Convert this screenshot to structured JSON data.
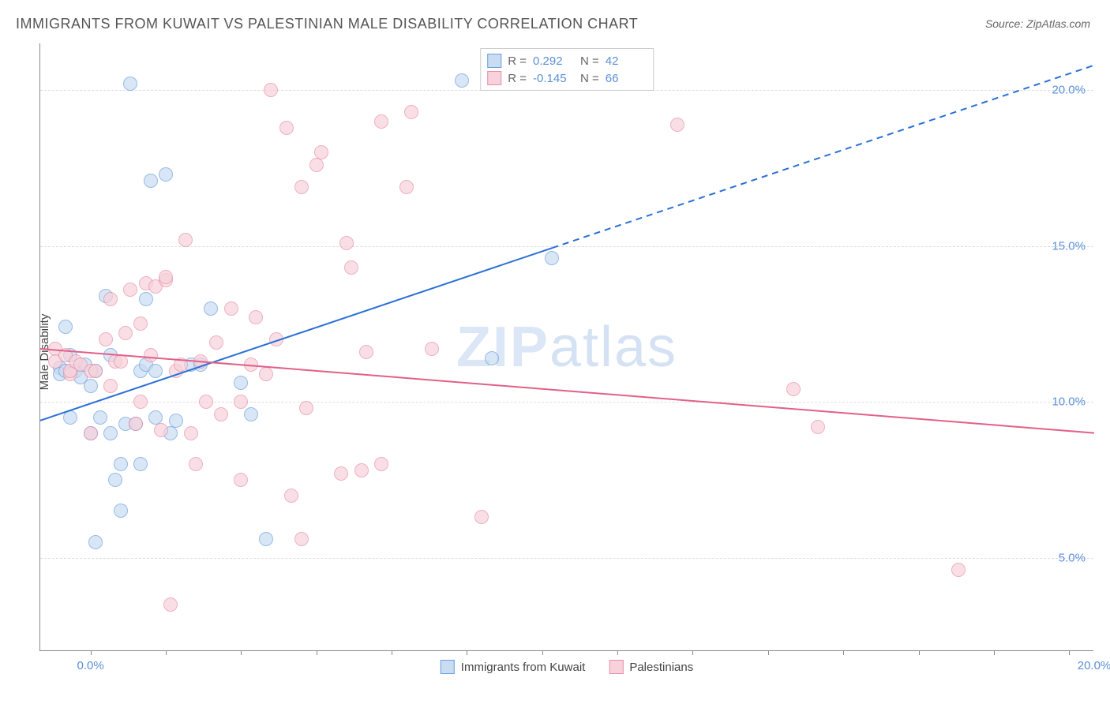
{
  "title": "IMMIGRANTS FROM KUWAIT VS PALESTINIAN MALE DISABILITY CORRELATION CHART",
  "source": "Source: ZipAtlas.com",
  "ylabel": "Male Disability",
  "watermark_a": "ZIP",
  "watermark_b": "atlas",
  "chart": {
    "type": "scatter",
    "background_color": "#ffffff",
    "grid_color": "#dddddd",
    "axis_color": "#888888",
    "xlim": [
      -1,
      20
    ],
    "ylim": [
      2,
      21.5
    ],
    "xtick_marks": [
      0,
      1.5,
      3,
      4.5,
      6,
      7.5,
      9,
      10.5,
      12,
      13.5,
      15,
      16.5,
      18,
      19.5
    ],
    "xtick_labels": [
      {
        "x": 0,
        "label": "0.0%"
      },
      {
        "x": 20,
        "label": "20.0%"
      }
    ],
    "ytick_labels": [
      {
        "y": 5,
        "label": "5.0%"
      },
      {
        "y": 10,
        "label": "10.0%"
      },
      {
        "y": 15,
        "label": "15.0%"
      },
      {
        "y": 20,
        "label": "20.0%"
      }
    ],
    "grid_y": [
      5,
      10,
      15,
      20
    ],
    "marker_radius": 9,
    "series": [
      {
        "name": "Immigrants from Kuwait",
        "fill": "#c9dcf2",
        "stroke": "#6a9fe0",
        "R": "0.292",
        "N": "42",
        "trend": {
          "x1": -1,
          "y1": 9.4,
          "x2": 20,
          "y2": 20.8,
          "solid_until_x": 9.2,
          "color": "#2a6fd6",
          "width": 2
        },
        "points": [
          [
            -0.6,
            11.1
          ],
          [
            -0.6,
            10.9
          ],
          [
            -0.5,
            11.0
          ],
          [
            -0.5,
            12.4
          ],
          [
            -0.4,
            11.5
          ],
          [
            -0.4,
            9.5
          ],
          [
            -0.3,
            11.0
          ],
          [
            -0.2,
            10.8
          ],
          [
            -0.1,
            11.2
          ],
          [
            0.0,
            10.5
          ],
          [
            0.0,
            9.0
          ],
          [
            0.1,
            11.0
          ],
          [
            0.1,
            5.5
          ],
          [
            0.2,
            9.5
          ],
          [
            0.3,
            13.4
          ],
          [
            0.4,
            9.0
          ],
          [
            0.4,
            11.5
          ],
          [
            0.5,
            7.5
          ],
          [
            0.6,
            6.5
          ],
          [
            0.6,
            8.0
          ],
          [
            0.7,
            9.3
          ],
          [
            0.8,
            20.2
          ],
          [
            0.9,
            9.3
          ],
          [
            1.0,
            11.0
          ],
          [
            1.0,
            8.0
          ],
          [
            1.1,
            11.2
          ],
          [
            1.1,
            13.3
          ],
          [
            1.2,
            17.1
          ],
          [
            1.3,
            11.0
          ],
          [
            1.3,
            9.5
          ],
          [
            1.5,
            17.3
          ],
          [
            1.6,
            9.0
          ],
          [
            1.7,
            9.4
          ],
          [
            2.0,
            11.2
          ],
          [
            2.2,
            11.2
          ],
          [
            2.4,
            13.0
          ],
          [
            3.0,
            10.6
          ],
          [
            3.2,
            9.6
          ],
          [
            3.5,
            5.6
          ],
          [
            7.4,
            20.3
          ],
          [
            8.0,
            11.4
          ],
          [
            9.2,
            14.6
          ]
        ]
      },
      {
        "name": "Palestinians",
        "fill": "#f7d2db",
        "stroke": "#e890a8",
        "R": "-0.145",
        "N": "66",
        "trend": {
          "x1": -1,
          "y1": 11.7,
          "x2": 20,
          "y2": 9.0,
          "solid_until_x": 20,
          "color": "#e26088",
          "width": 2
        },
        "points": [
          [
            -0.7,
            11.7
          ],
          [
            -0.7,
            11.3
          ],
          [
            -0.5,
            11.5
          ],
          [
            -0.4,
            10.9
          ],
          [
            -0.4,
            11.0
          ],
          [
            -0.3,
            11.3
          ],
          [
            -0.2,
            11.2
          ],
          [
            0.0,
            9.0
          ],
          [
            0.0,
            11.0
          ],
          [
            0.1,
            11.0
          ],
          [
            0.3,
            12.0
          ],
          [
            0.4,
            10.5
          ],
          [
            0.4,
            13.3
          ],
          [
            0.5,
            11.3
          ],
          [
            0.6,
            11.3
          ],
          [
            0.7,
            12.2
          ],
          [
            0.8,
            13.6
          ],
          [
            0.9,
            9.3
          ],
          [
            1.0,
            10.0
          ],
          [
            1.0,
            12.5
          ],
          [
            1.1,
            13.8
          ],
          [
            1.2,
            11.5
          ],
          [
            1.3,
            13.7
          ],
          [
            1.4,
            9.1
          ],
          [
            1.5,
            13.9
          ],
          [
            1.5,
            14.0
          ],
          [
            1.6,
            3.5
          ],
          [
            1.7,
            11.0
          ],
          [
            1.8,
            11.2
          ],
          [
            1.9,
            15.2
          ],
          [
            2.0,
            9.0
          ],
          [
            2.1,
            8.0
          ],
          [
            2.2,
            11.3
          ],
          [
            2.3,
            10.0
          ],
          [
            2.5,
            11.9
          ],
          [
            2.6,
            9.6
          ],
          [
            2.8,
            13.0
          ],
          [
            3.0,
            7.5
          ],
          [
            3.0,
            10.0
          ],
          [
            3.2,
            11.2
          ],
          [
            3.3,
            12.7
          ],
          [
            3.5,
            10.9
          ],
          [
            3.6,
            20.0
          ],
          [
            3.7,
            12.0
          ],
          [
            3.9,
            18.8
          ],
          [
            4.0,
            7.0
          ],
          [
            4.2,
            5.6
          ],
          [
            4.2,
            16.9
          ],
          [
            4.3,
            9.8
          ],
          [
            4.5,
            17.6
          ],
          [
            4.6,
            18.0
          ],
          [
            5.0,
            7.7
          ],
          [
            5.1,
            15.1
          ],
          [
            5.2,
            14.3
          ],
          [
            5.4,
            7.8
          ],
          [
            5.5,
            11.6
          ],
          [
            5.8,
            8.0
          ],
          [
            5.8,
            19.0
          ],
          [
            6.3,
            16.9
          ],
          [
            6.4,
            19.3
          ],
          [
            6.8,
            11.7
          ],
          [
            7.8,
            6.3
          ],
          [
            11.7,
            18.9
          ],
          [
            14.0,
            10.4
          ],
          [
            14.5,
            9.2
          ],
          [
            17.3,
            4.6
          ]
        ]
      }
    ],
    "bottom_legend": [
      {
        "swatch_fill": "#c9dcf2",
        "swatch_stroke": "#6a9fe0",
        "label": "Immigrants from Kuwait"
      },
      {
        "swatch_fill": "#f7d2db",
        "swatch_stroke": "#e890a8",
        "label": "Palestinians"
      }
    ]
  }
}
